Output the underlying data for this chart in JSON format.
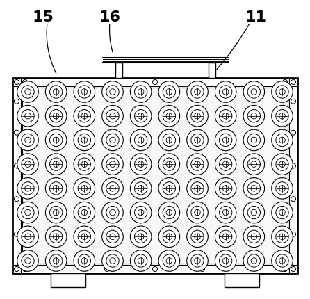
{
  "fig_width": 4.46,
  "fig_height": 4.3,
  "dpi": 100,
  "bg_color": "#ffffff",
  "label_15": "15",
  "label_16": "16",
  "label_11": "11",
  "line_color": "#000000",
  "lw": 1.0
}
